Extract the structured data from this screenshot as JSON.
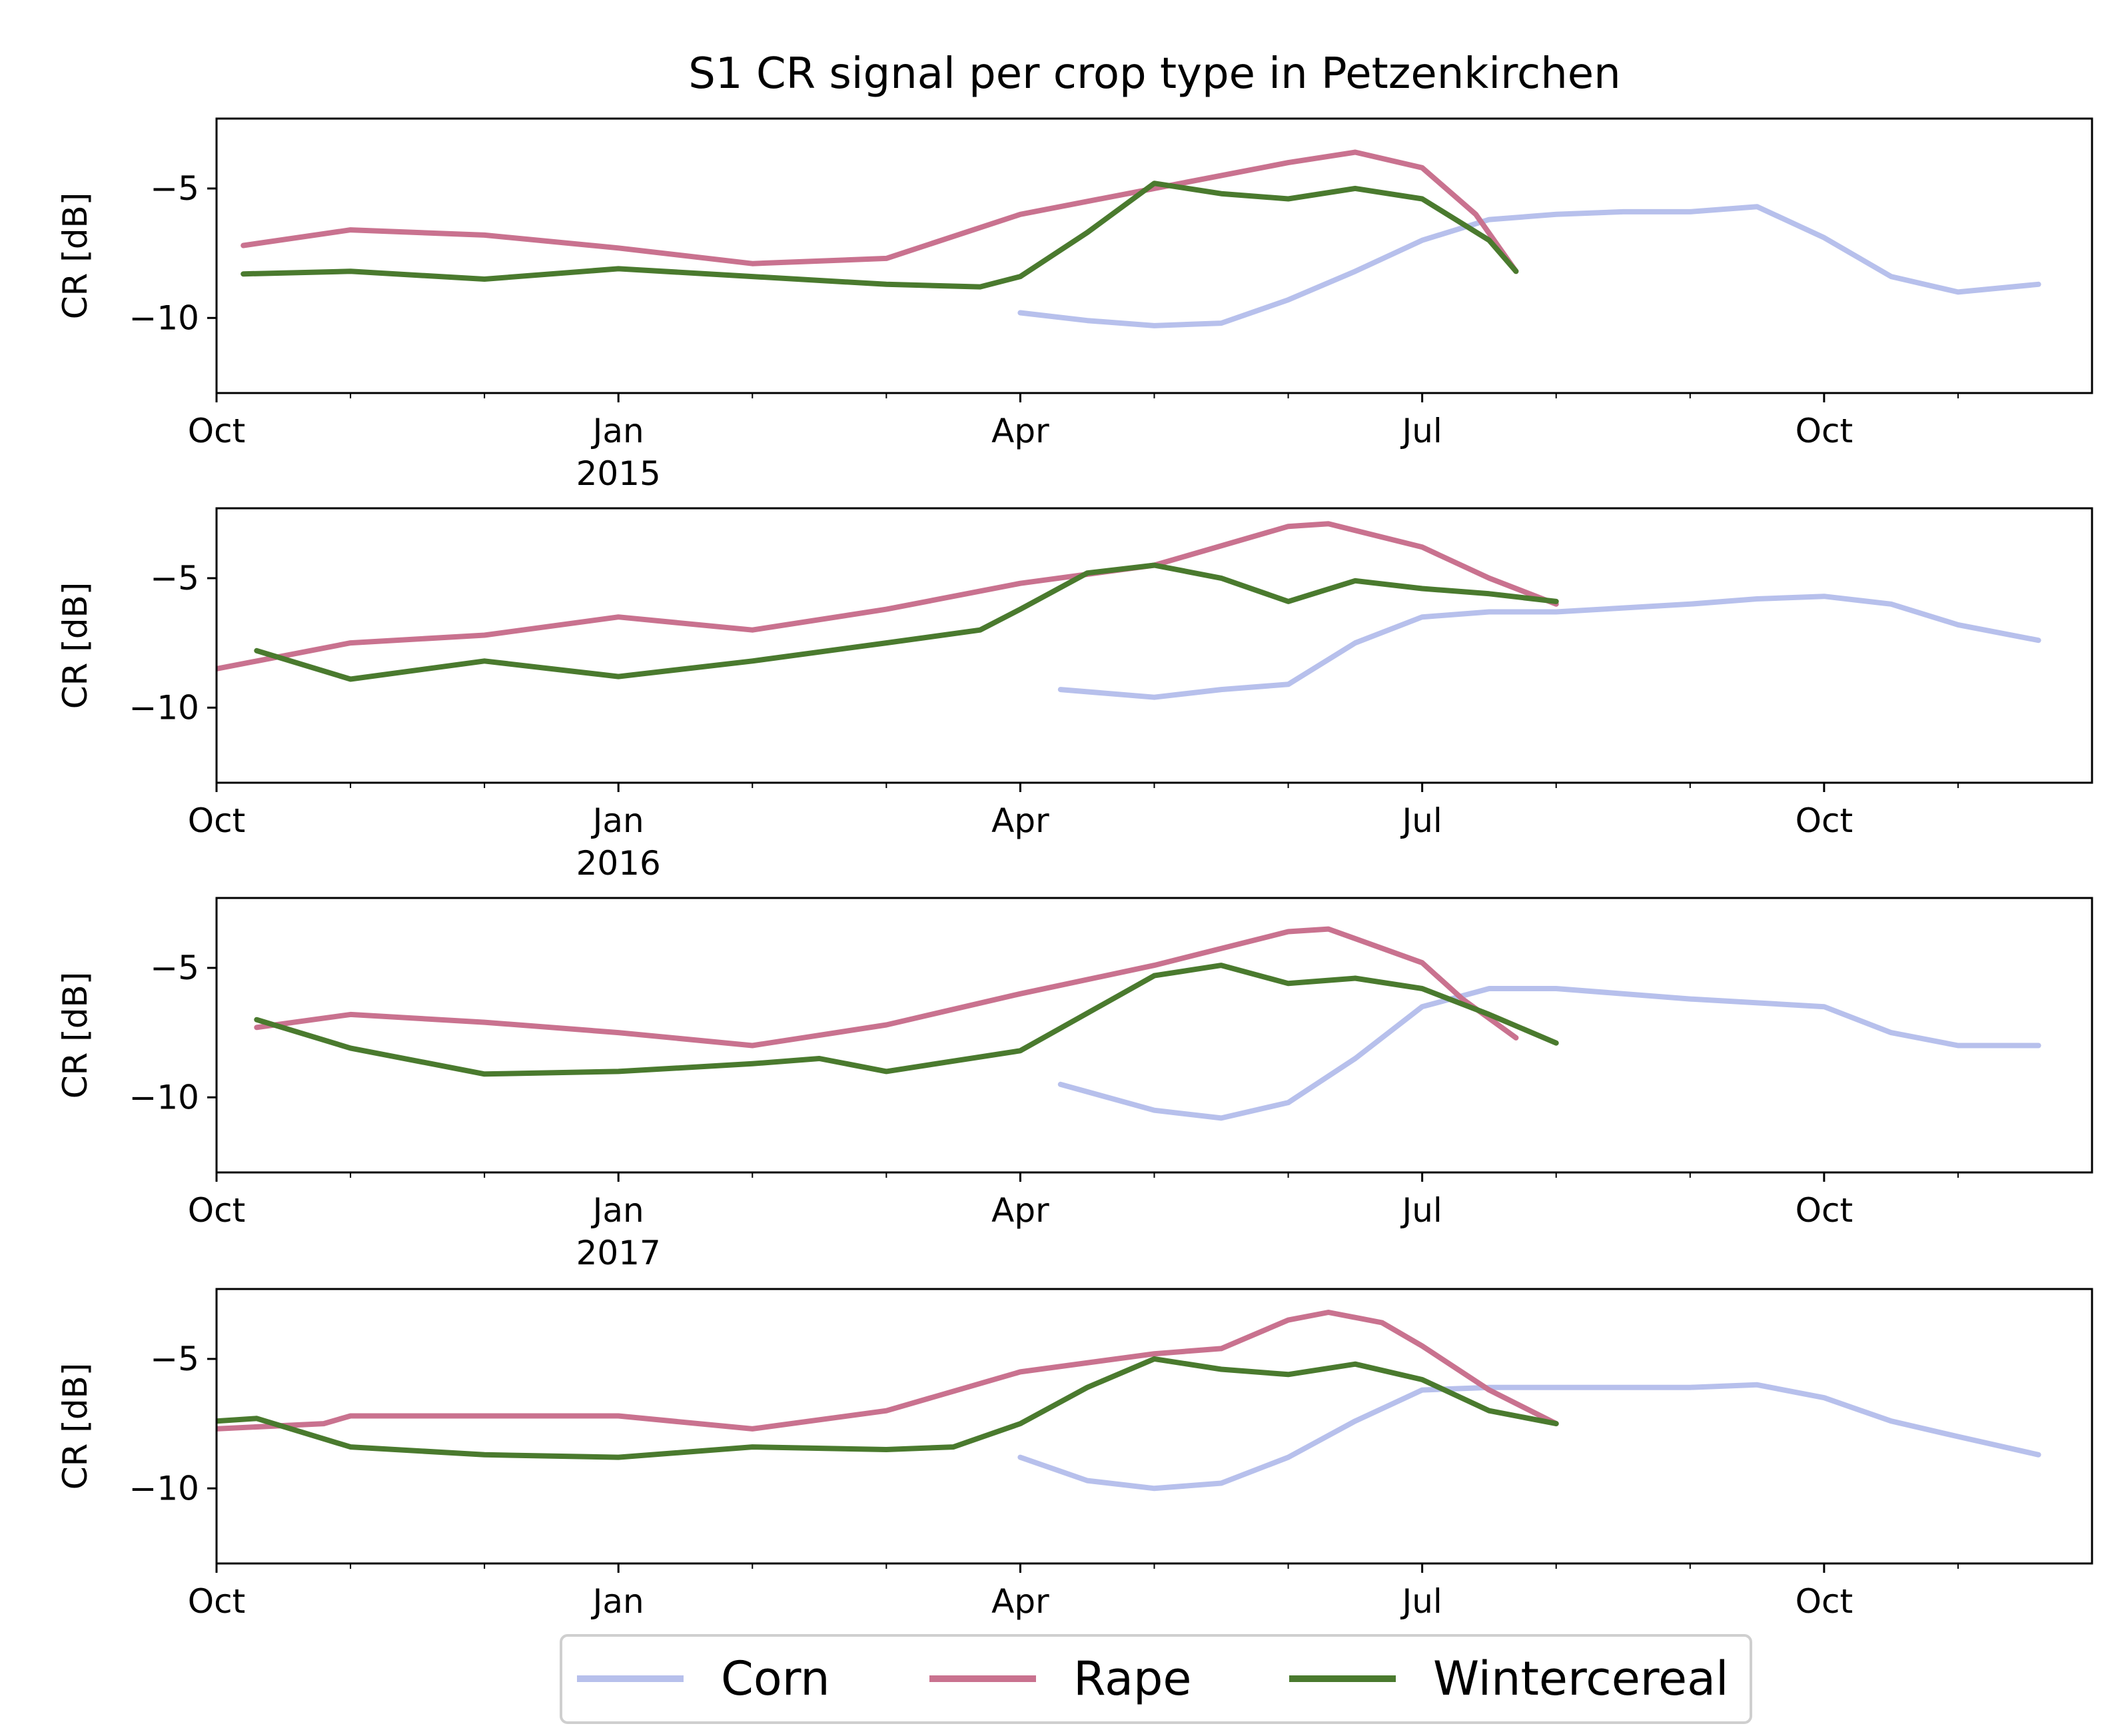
{
  "title": "S1 CR signal per crop type in Petzenkirchen",
  "y_axis_label": "CR [dB]",
  "y_ticks": [
    {
      "value": -5,
      "label": "−5"
    },
    {
      "value": -10,
      "label": "−10"
    }
  ],
  "x_ticks": [
    {
      "month": 0,
      "label": "Oct"
    },
    {
      "month": 3,
      "label": "Jan"
    },
    {
      "month": 6,
      "label": "Apr"
    },
    {
      "month": 9,
      "label": "Jul"
    },
    {
      "month": 12,
      "label": "Oct"
    }
  ],
  "legend": {
    "items": [
      {
        "label": "Corn",
        "color": "#b7c0ec"
      },
      {
        "label": "Rape",
        "color": "#c9728f"
      },
      {
        "label": "Wintercereal",
        "color": "#4a7a2e"
      }
    ]
  },
  "chart_data": [
    {
      "type": "line",
      "year_label": "2015",
      "xlabel": "",
      "ylabel": "CR [dB]",
      "ylim": [
        -12.9,
        -2.3
      ],
      "x_unit": "months since Oct",
      "xlim": [
        0,
        14
      ],
      "series": [
        {
          "name": "Corn",
          "color": "#b7c0ec",
          "x": [
            6,
            6.5,
            7,
            7.5,
            8,
            8.5,
            9,
            9.5,
            10,
            10.5,
            11,
            11.5,
            12,
            12.5,
            13,
            13.6
          ],
          "y": [
            -9.8,
            -10.1,
            -10.3,
            -10.2,
            -9.3,
            -8.2,
            -7,
            -6.2,
            -6,
            -5.9,
            -5.9,
            -5.7,
            -6.9,
            -8.4,
            -9,
            -8.7
          ]
        },
        {
          "name": "Rape",
          "color": "#c9728f",
          "x": [
            0.2,
            1,
            2,
            3,
            4,
            5,
            6,
            7,
            8,
            8.5,
            9,
            9.4,
            9.7
          ],
          "y": [
            -7.2,
            -6.6,
            -6.8,
            -7.3,
            -7.9,
            -7.7,
            -6,
            -5,
            -4,
            -3.6,
            -4.2,
            -6,
            -8.2
          ]
        },
        {
          "name": "Wintercereal",
          "color": "#4a7a2e",
          "x": [
            0.2,
            1,
            2,
            3,
            4,
            5,
            5.7,
            6,
            6.5,
            7,
            7.5,
            8,
            8.5,
            9,
            9.5,
            9.7
          ],
          "y": [
            -8.3,
            -8.2,
            -8.5,
            -8.1,
            -8.4,
            -8.7,
            -8.8,
            -8.4,
            -6.7,
            -4.8,
            -5.2,
            -5.4,
            -5,
            -5.4,
            -7,
            -8.2
          ]
        }
      ]
    },
    {
      "type": "line",
      "year_label": "2016",
      "xlabel": "",
      "ylabel": "CR [dB]",
      "ylim": [
        -12.9,
        -2.3
      ],
      "x_unit": "months since Oct",
      "xlim": [
        0,
        14
      ],
      "series": [
        {
          "name": "Corn",
          "color": "#b7c0ec",
          "x": [
            6.3,
            7,
            7.5,
            8,
            8.5,
            9,
            9.5,
            10,
            11,
            11.5,
            12,
            12.5,
            13,
            13.6
          ],
          "y": [
            -9.3,
            -9.6,
            -9.3,
            -9.1,
            -7.5,
            -6.5,
            -6.3,
            -6.3,
            -6,
            -5.8,
            -5.7,
            -6,
            -6.8,
            -7.4
          ]
        },
        {
          "name": "Rape",
          "color": "#c9728f",
          "x": [
            0,
            1,
            2,
            3,
            4,
            5,
            6,
            7,
            8,
            8.3,
            9,
            9.5,
            10
          ],
          "y": [
            -8.5,
            -7.5,
            -7.2,
            -6.5,
            -7,
            -6.2,
            -5.2,
            -4.5,
            -3,
            -2.9,
            -3.8,
            -5,
            -6
          ]
        },
        {
          "name": "Wintercereal",
          "color": "#4a7a2e",
          "x": [
            0.3,
            1,
            2,
            3,
            4,
            5,
            5.7,
            6,
            6.5,
            7,
            7.5,
            8,
            8.5,
            9,
            9.5,
            10
          ],
          "y": [
            -7.8,
            -8.9,
            -8.2,
            -8.8,
            -8.2,
            -7.5,
            -7,
            -6.2,
            -4.8,
            -4.5,
            -5,
            -5.9,
            -5.1,
            -5.4,
            -5.6,
            -5.9
          ]
        }
      ]
    },
    {
      "type": "line",
      "year_label": "2017",
      "xlabel": "",
      "ylabel": "CR [dB]",
      "ylim": [
        -12.9,
        -2.3
      ],
      "x_unit": "months since Oct",
      "xlim": [
        0,
        14
      ],
      "series": [
        {
          "name": "Corn",
          "color": "#b7c0ec",
          "x": [
            6.3,
            7,
            7.5,
            8,
            8.5,
            9,
            9.5,
            10,
            11,
            12,
            12.5,
            13,
            13.6
          ],
          "y": [
            -9.5,
            -10.5,
            -10.8,
            -10.2,
            -8.5,
            -6.5,
            -5.8,
            -5.8,
            -6.2,
            -6.5,
            -7.5,
            -8,
            -8
          ]
        },
        {
          "name": "Rape",
          "color": "#c9728f",
          "x": [
            0.3,
            1,
            2,
            3,
            4,
            5,
            6,
            7,
            8,
            8.3,
            9,
            9.3,
            9.7
          ],
          "y": [
            -7.3,
            -6.8,
            -7.1,
            -7.5,
            -8,
            -7.2,
            -6,
            -4.9,
            -3.6,
            -3.5,
            -4.8,
            -6.2,
            -7.7
          ]
        },
        {
          "name": "Wintercereal",
          "color": "#4a7a2e",
          "x": [
            0.3,
            1,
            2,
            3,
            4,
            4.5,
            5,
            6,
            7,
            7.5,
            8,
            8.5,
            9,
            9.5,
            10
          ],
          "y": [
            -7,
            -8.1,
            -9.1,
            -9,
            -8.7,
            -8.5,
            -9,
            -8.2,
            -5.3,
            -4.9,
            -5.6,
            -5.4,
            -5.8,
            -6.8,
            -7.9
          ]
        }
      ]
    },
    {
      "type": "line",
      "year_label": "",
      "xlabel": "",
      "ylabel": "CR [dB]",
      "ylim": [
        -12.9,
        -2.3
      ],
      "x_unit": "months since Oct",
      "xlim": [
        0,
        14
      ],
      "series": [
        {
          "name": "Corn",
          "color": "#b7c0ec",
          "x": [
            6,
            6.5,
            7,
            7.5,
            8,
            8.5,
            9,
            9.5,
            10,
            11,
            11.5,
            12,
            12.5,
            13,
            13.6
          ],
          "y": [
            -8.8,
            -9.7,
            -10,
            -9.8,
            -8.8,
            -7.4,
            -6.2,
            -6.1,
            -6.1,
            -6.1,
            -6,
            -6.5,
            -7.4,
            -8,
            -8.7
          ]
        },
        {
          "name": "Rape",
          "color": "#c9728f",
          "x": [
            0,
            0.8,
            1,
            2,
            3,
            4,
            5,
            6,
            7,
            7.5,
            8,
            8.3,
            8.7,
            9,
            9.5,
            10
          ],
          "y": [
            -7.7,
            -7.5,
            -7.2,
            -7.2,
            -7.2,
            -7.7,
            -7,
            -5.5,
            -4.8,
            -4.6,
            -3.5,
            -3.2,
            -3.6,
            -4.5,
            -6.2,
            -7.5
          ]
        },
        {
          "name": "Wintercereal",
          "color": "#4a7a2e",
          "x": [
            0,
            0.3,
            1,
            2,
            3,
            4,
            5,
            5.5,
            6,
            6.5,
            7,
            7.5,
            8,
            8.5,
            9,
            9.5,
            10
          ],
          "y": [
            -7.4,
            -7.3,
            -8.4,
            -8.7,
            -8.8,
            -8.4,
            -8.5,
            -8.4,
            -7.5,
            -6.1,
            -5,
            -5.4,
            -5.6,
            -5.2,
            -5.8,
            -7,
            -7.5
          ]
        }
      ]
    }
  ]
}
